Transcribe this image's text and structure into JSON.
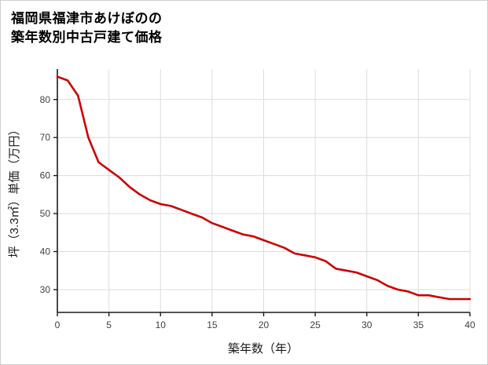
{
  "chart_data": {
    "type": "line",
    "title": "福岡県福津市あけぼのの\n築年数別中古戸建て価格",
    "xlabel": "築年数（年）",
    "ylabel": "坪（3.3㎡）単価（万円）",
    "x": [
      0,
      1,
      2,
      3,
      4,
      5,
      6,
      7,
      8,
      9,
      10,
      11,
      12,
      13,
      14,
      15,
      16,
      17,
      18,
      19,
      20,
      21,
      22,
      23,
      24,
      25,
      26,
      27,
      28,
      29,
      30,
      31,
      32,
      33,
      34,
      35,
      36,
      37,
      38,
      39,
      40
    ],
    "y": [
      86,
      85,
      81,
      70,
      63.5,
      61.5,
      59.5,
      57,
      55,
      53.5,
      52.5,
      52,
      51,
      50,
      49,
      47.5,
      46.5,
      45.5,
      44.5,
      44,
      43,
      42,
      41,
      39.5,
      39,
      38.5,
      37.5,
      35.5,
      35,
      34.5,
      33.5,
      32.5,
      31,
      30,
      29.5,
      28.5,
      28.5,
      28,
      27.5,
      27.5,
      27.5
    ],
    "xlim": [
      0,
      40
    ],
    "ylim": [
      24,
      88
    ],
    "xticks": [
      0,
      5,
      10,
      15,
      20,
      25,
      30,
      35,
      40
    ],
    "yticks": [
      30,
      40,
      50,
      60,
      70,
      80
    ],
    "grid": true,
    "legend": "none",
    "line_color": "#cc0000",
    "grid_color": "#dcdcdc",
    "axis_color": "#1a1a1a"
  }
}
